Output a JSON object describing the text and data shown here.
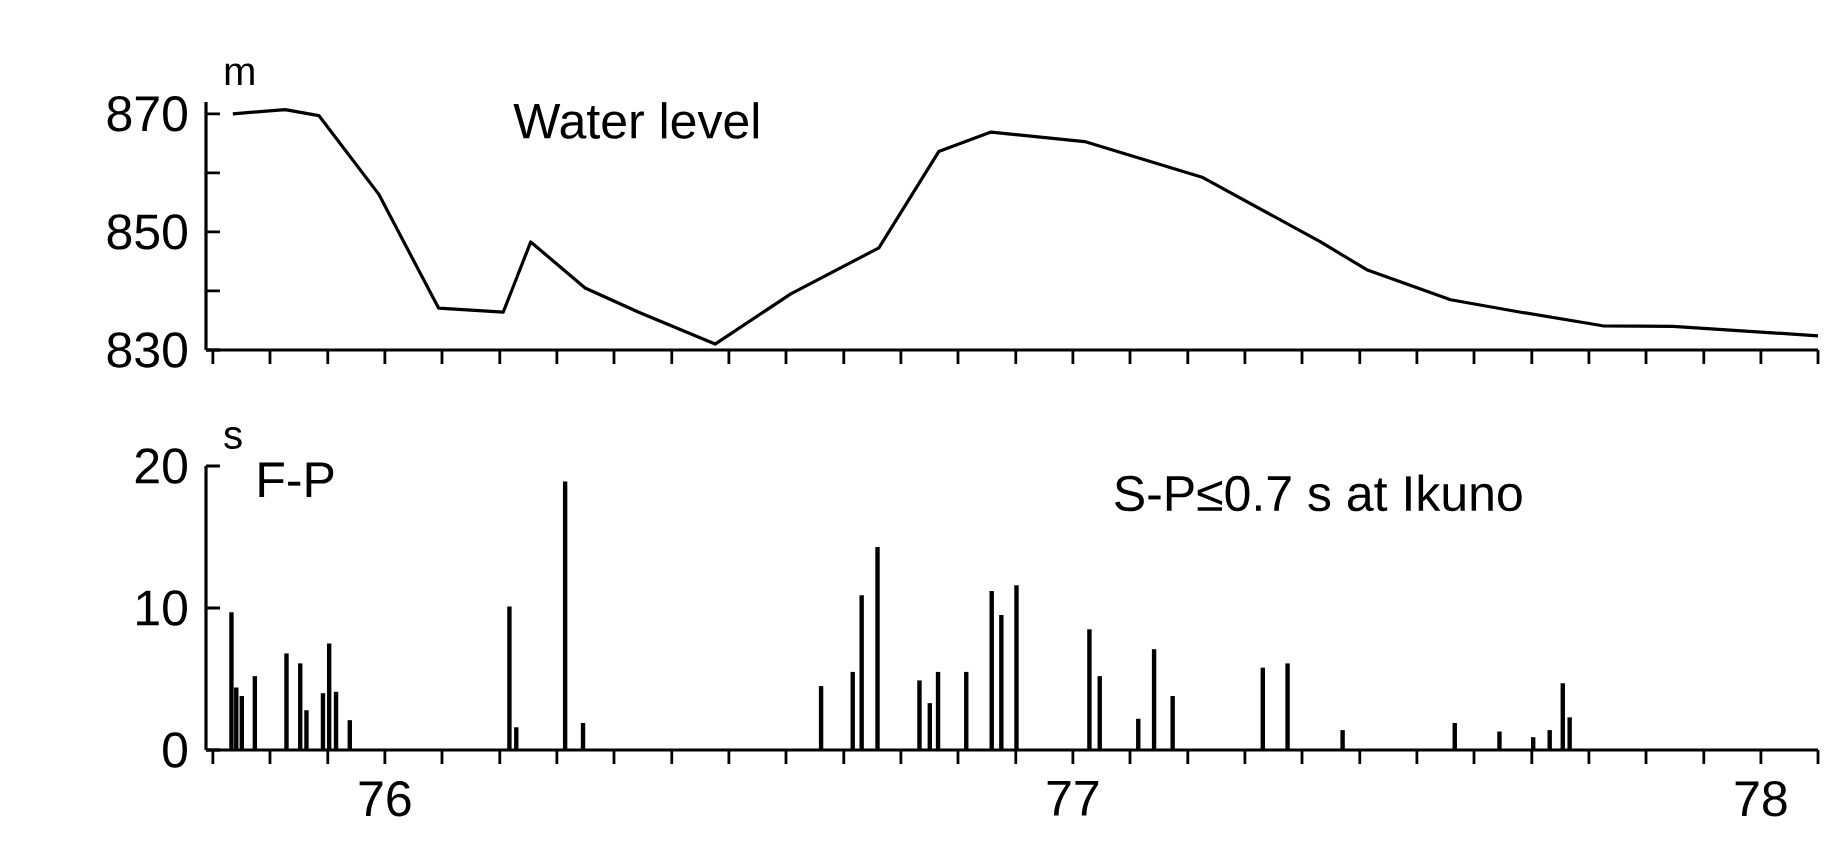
{
  "chart_data": [
    {
      "type": "line",
      "title": "Water level",
      "ylabel": "m",
      "color": "#000000",
      "xlim": [
        1975.74,
        1978.083
      ],
      "xticks": [
        {
          "value": 1975.75,
          "label": null
        },
        {
          "value": 1975.833,
          "label": null
        },
        {
          "value": 1975.917,
          "label": null
        },
        {
          "value": 1976,
          "label": null
        },
        {
          "value": 1976.083,
          "label": null
        },
        {
          "value": 1976.167,
          "label": null
        },
        {
          "value": 1976.25,
          "label": null
        },
        {
          "value": 1976.333,
          "label": null
        },
        {
          "value": 1976.417,
          "label": null
        },
        {
          "value": 1976.5,
          "label": null
        },
        {
          "value": 1976.583,
          "label": null
        },
        {
          "value": 1976.667,
          "label": null
        },
        {
          "value": 1976.75,
          "label": null
        },
        {
          "value": 1976.833,
          "label": null
        },
        {
          "value": 1976.917,
          "label": null
        },
        {
          "value": 1977,
          "label": null
        },
        {
          "value": 1977.083,
          "label": null
        },
        {
          "value": 1977.167,
          "label": null
        },
        {
          "value": 1977.25,
          "label": null
        },
        {
          "value": 1977.333,
          "label": null
        },
        {
          "value": 1977.417,
          "label": null
        },
        {
          "value": 1977.5,
          "label": null
        },
        {
          "value": 1977.583,
          "label": null
        },
        {
          "value": 1977.667,
          "label": null
        },
        {
          "value": 1977.75,
          "label": null
        },
        {
          "value": 1977.833,
          "label": null
        },
        {
          "value": 1977.917,
          "label": null
        },
        {
          "value": 1978,
          "label": null
        },
        {
          "value": 1978.083,
          "label": null
        }
      ],
      "ylim": [
        830,
        872
      ],
      "yticks": [
        830,
        {
          "value": 840,
          "label": null
        },
        850,
        {
          "value": 860,
          "label": null
        },
        870
      ],
      "tick_labels": "y",
      "x": [
        1975.779,
        1975.855,
        1975.904,
        1975.991,
        1976.078,
        1976.172,
        1976.212,
        1976.291,
        1976.369,
        1976.48,
        1976.59,
        1976.718,
        1976.805,
        1976.881,
        1977.017,
        1977.189,
        1977.36,
        1977.427,
        1977.549,
        1977.651,
        1977.77,
        1977.872,
        1978.083
      ],
      "values": [
        870,
        870.7,
        869.7,
        856.4,
        837.1,
        836.4,
        848.3,
        840.5,
        836.4,
        831,
        839.5,
        847.3,
        863.6,
        866.9,
        865.3,
        859.2,
        848.3,
        843.6,
        838.5,
        836.4,
        834.1,
        834,
        832.4
      ]
    },
    {
      "type": "bar",
      "title": "F-P",
      "subtitle": "S-P≤0.7 s at Ikuno",
      "ylabel": "s",
      "color": "#000000",
      "xlim": [
        1975.74,
        1978.083
      ],
      "ylim": [
        0,
        20
      ],
      "yticks": [
        0,
        10,
        20
      ],
      "xticks": [
        {
          "value": 1975.75,
          "label": null
        },
        {
          "value": 1975.833,
          "label": null
        },
        {
          "value": 1975.917,
          "label": null
        },
        {
          "value": 1976,
          "label": "76"
        },
        {
          "value": 1976.083,
          "label": null
        },
        {
          "value": 1976.167,
          "label": null
        },
        {
          "value": 1976.25,
          "label": null
        },
        {
          "value": 1976.333,
          "label": null
        },
        {
          "value": 1976.417,
          "label": null
        },
        {
          "value": 1976.5,
          "label": null
        },
        {
          "value": 1976.583,
          "label": null
        },
        {
          "value": 1976.667,
          "label": null
        },
        {
          "value": 1976.75,
          "label": null
        },
        {
          "value": 1976.833,
          "label": null
        },
        {
          "value": 1976.917,
          "label": null
        },
        {
          "value": 1977,
          "label": "77"
        },
        {
          "value": 1977.083,
          "label": null
        },
        {
          "value": 1977.167,
          "label": null
        },
        {
          "value": 1977.25,
          "label": null
        },
        {
          "value": 1977.333,
          "label": null
        },
        {
          "value": 1977.417,
          "label": null
        },
        {
          "value": 1977.5,
          "label": null
        },
        {
          "value": 1977.583,
          "label": null
        },
        {
          "value": 1977.667,
          "label": null
        },
        {
          "value": 1977.75,
          "label": null
        },
        {
          "value": 1977.833,
          "label": null
        },
        {
          "value": 1977.917,
          "label": null
        },
        {
          "value": 1978,
          "label": "78"
        },
        {
          "value": 1978.083,
          "label": null
        }
      ],
      "x": [
        1975.777,
        1975.784,
        1975.792,
        1975.811,
        1975.857,
        1975.877,
        1975.886,
        1975.91,
        1975.919,
        1975.929,
        1975.949,
        1976.181,
        1976.191,
        1976.262,
        1976.288,
        1976.634,
        1976.68,
        1976.693,
        1976.716,
        1976.777,
        1976.792,
        1976.804,
        1976.845,
        1976.882,
        1976.896,
        1976.918,
        1977.024,
        1977.039,
        1977.095,
        1977.118,
        1977.145,
        1977.276,
        1977.312,
        1977.392,
        1977.555,
        1977.62,
        1977.669,
        1977.693,
        1977.712,
        1977.722
      ],
      "values": [
        9.7,
        4.4,
        3.8,
        5.2,
        6.8,
        6.1,
        2.8,
        4.0,
        7.5,
        4.1,
        2.1,
        10.1,
        1.6,
        18.9,
        1.9,
        4.5,
        5.5,
        10.9,
        14.3,
        4.9,
        3.3,
        5.5,
        5.5,
        11.2,
        9.5,
        11.6,
        8.5,
        5.2,
        2.2,
        7.1,
        3.8,
        5.8,
        6.1,
        1.4,
        1.9,
        1.3,
        0.9,
        1.4,
        4.7,
        2.3
      ]
    }
  ]
}
